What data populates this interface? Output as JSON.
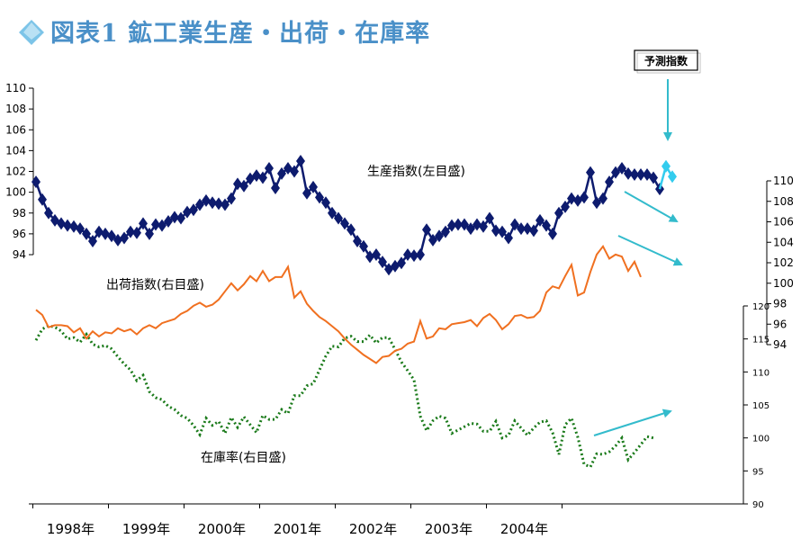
{
  "title": "図表1 鉱工業生産・出荷・在庫率",
  "colors": {
    "production": "#0d1b6e",
    "forecast": "#33ccee",
    "shipments": "#f07020",
    "inventory": "#1a7a1a",
    "arrow": "#33bbcc",
    "title": "#4a90c8"
  },
  "annotations": {
    "production": "生産指数(左目盛)",
    "shipments": "出荷指数(右目盛)",
    "inventory": "在庫率(右目盛)",
    "forecast_callout": "予測指数"
  },
  "chart_data": {
    "type": "line",
    "x_years": [
      "1998年",
      "1999年",
      "2000年",
      "2001年",
      "2002年",
      "2003年",
      "2004年"
    ],
    "axes": {
      "left": {
        "ticks": [
          94,
          96,
          98,
          100,
          102,
          104,
          106,
          108,
          110
        ],
        "ylim": [
          94,
          110
        ],
        "series": "生産指数"
      },
      "right_shipments": {
        "ticks": [
          94,
          96,
          98,
          100,
          102,
          104,
          106,
          108,
          110
        ],
        "ylim": [
          94,
          110
        ],
        "series": "出荷指数"
      },
      "right_inventory": {
        "ticks": [
          90,
          95,
          100,
          105,
          110,
          115,
          120
        ],
        "ylim": [
          90,
          120
        ],
        "series": "在庫率"
      }
    },
    "series": [
      {
        "name": "生産指数",
        "axis": "left",
        "start": "1998-01",
        "values": [
          101.0,
          99.3,
          98.0,
          97.3,
          97.0,
          96.8,
          96.7,
          96.5,
          96.0,
          95.3,
          96.2,
          96.0,
          95.8,
          95.4,
          95.6,
          96.2,
          96.1,
          97.0,
          96.0,
          96.9,
          96.8,
          97.2,
          97.6,
          97.5,
          98.1,
          98.3,
          98.8,
          99.2,
          99.0,
          98.9,
          98.8,
          99.4,
          100.8,
          100.6,
          101.3,
          101.6,
          101.4,
          102.3,
          100.4,
          101.8,
          102.3,
          102.0,
          103.0,
          99.9,
          100.5,
          99.5,
          99.0,
          98.0,
          97.5,
          97.0,
          96.4,
          95.3,
          94.8,
          93.8,
          94.0,
          93.3,
          92.6,
          92.9,
          93.2,
          94.0,
          93.9,
          94.0,
          96.4,
          95.4,
          95.8,
          96.2,
          96.8,
          96.9,
          96.9,
          96.5,
          96.9,
          96.7,
          97.5,
          96.3,
          96.2,
          95.6,
          96.9,
          96.5,
          96.5,
          96.3,
          97.3,
          96.8,
          96.0,
          98.0,
          98.6,
          99.4,
          99.2,
          99.5,
          101.9,
          99.0,
          99.4,
          101.0,
          101.9,
          102.3,
          101.8,
          101.7,
          101.7,
          101.7,
          101.4,
          100.3
        ],
        "forecast": [
          100.3,
          102.5,
          101.5
        ]
      },
      {
        "name": "出荷指数",
        "axis": "right_shipments",
        "start": "1998-01",
        "values": [
          97.4,
          96.9,
          95.7,
          95.9,
          95.9,
          95.8,
          95.2,
          95.6,
          94.6,
          95.3,
          94.8,
          95.2,
          95.1,
          95.6,
          95.3,
          95.5,
          95.0,
          95.6,
          95.9,
          95.6,
          96.1,
          96.3,
          96.5,
          97.0,
          97.3,
          97.8,
          98.1,
          97.7,
          97.9,
          98.4,
          99.2,
          100.0,
          99.3,
          99.9,
          100.7,
          100.2,
          101.2,
          100.2,
          100.6,
          100.6,
          101.6,
          98.6,
          99.2,
          98.0,
          97.3,
          96.7,
          96.3,
          95.8,
          95.3,
          94.6,
          94.0,
          93.5,
          93.0,
          92.6,
          92.2,
          92.8,
          92.9,
          93.4,
          93.6,
          94.1,
          94.3,
          96.3,
          94.6,
          94.8,
          95.6,
          95.5,
          96.0,
          96.1,
          96.2,
          96.4,
          95.8,
          96.6,
          97.0,
          96.4,
          95.5,
          96.0,
          96.8,
          96.9,
          96.6,
          96.7,
          97.3,
          99.1,
          99.7,
          99.5,
          100.7,
          101.8,
          98.8,
          99.1,
          101.1,
          102.8,
          103.6,
          102.4,
          102.8,
          102.6,
          101.2,
          102.1,
          100.6
        ],
        "forecast": []
      },
      {
        "name": "在庫率",
        "axis": "right_inventory",
        "start": "1998-01",
        "values": [
          114.8,
          116.5,
          117.0,
          116.8,
          116.2,
          115.0,
          115.2,
          114.5,
          115.7,
          114.2,
          113.8,
          114.0,
          113.5,
          112.3,
          111.2,
          110.3,
          108.7,
          109.5,
          107.0,
          106.1,
          105.8,
          104.8,
          104.3,
          103.4,
          103.0,
          101.9,
          100.5,
          103.0,
          101.9,
          102.5,
          100.7,
          103.1,
          101.6,
          103.2,
          102.0,
          100.8,
          103.4,
          102.8,
          102.8,
          104.3,
          103.7,
          106.4,
          106.4,
          107.9,
          108.2,
          110.3,
          112.4,
          113.9,
          113.8,
          115.1,
          115.4,
          114.6,
          114.6,
          115.6,
          114.4,
          115.2,
          115.2,
          113.4,
          111.5,
          110.2,
          108.8,
          103.3,
          101.1,
          102.6,
          103.3,
          103.0,
          100.7,
          101.2,
          101.7,
          102.2,
          102.1,
          101.0,
          101.0,
          102.5,
          100.0,
          100.4,
          102.6,
          101.5,
          100.4,
          101.5,
          102.4,
          102.6,
          100.8,
          97.5,
          102.0,
          103.0,
          100.1,
          96.0,
          95.6,
          97.6,
          97.5,
          97.9,
          98.8,
          100.0,
          96.7,
          97.8,
          99.0,
          100.2,
          100.0
        ],
        "forecast": []
      }
    ]
  }
}
